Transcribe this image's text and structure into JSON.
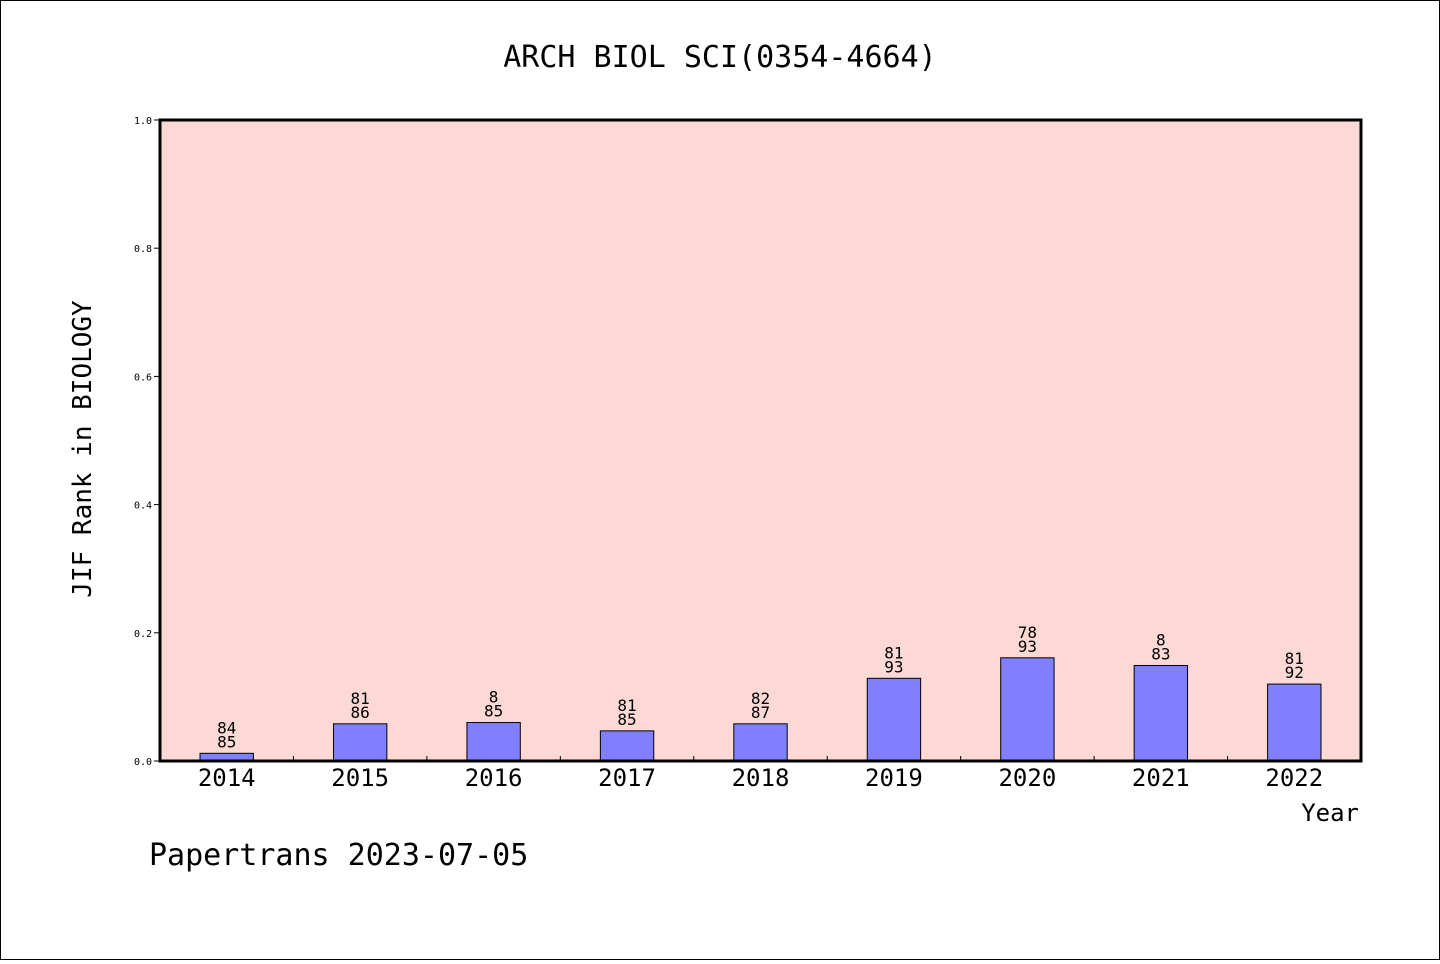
{
  "chart_data": {
    "type": "bar",
    "title": "ARCH BIOL SCI(0354-4664)",
    "xlabel": "Year",
    "ylabel": "JIF Rank in BIOLOGY",
    "ylim": [
      0,
      1.0
    ],
    "yticks": [
      "0.0",
      "0.2",
      "0.4",
      "0.6",
      "0.8",
      "1.0"
    ],
    "categories": [
      "2014",
      "2015",
      "2016",
      "2017",
      "2018",
      "2019",
      "2020",
      "2021",
      "2022"
    ],
    "values": [
      0.012,
      0.058,
      0.06,
      0.047,
      0.058,
      0.129,
      0.161,
      0.149,
      0.12
    ],
    "bar_labels": [
      [
        "84",
        "85"
      ],
      [
        "81",
        "86"
      ],
      [
        "8",
        "85"
      ],
      [
        "81",
        "85"
      ],
      [
        "82",
        "87"
      ],
      [
        "81",
        "93"
      ],
      [
        "78",
        "93"
      ],
      [
        "8",
        "83"
      ],
      [
        "81",
        "92"
      ]
    ],
    "grid": false,
    "colors": {
      "plot_background": "#fdd9d6",
      "bar_fill": "#8080ff",
      "bar_stroke": "#000000"
    }
  },
  "footer": {
    "text": "Papertrans 2023-07-05"
  }
}
